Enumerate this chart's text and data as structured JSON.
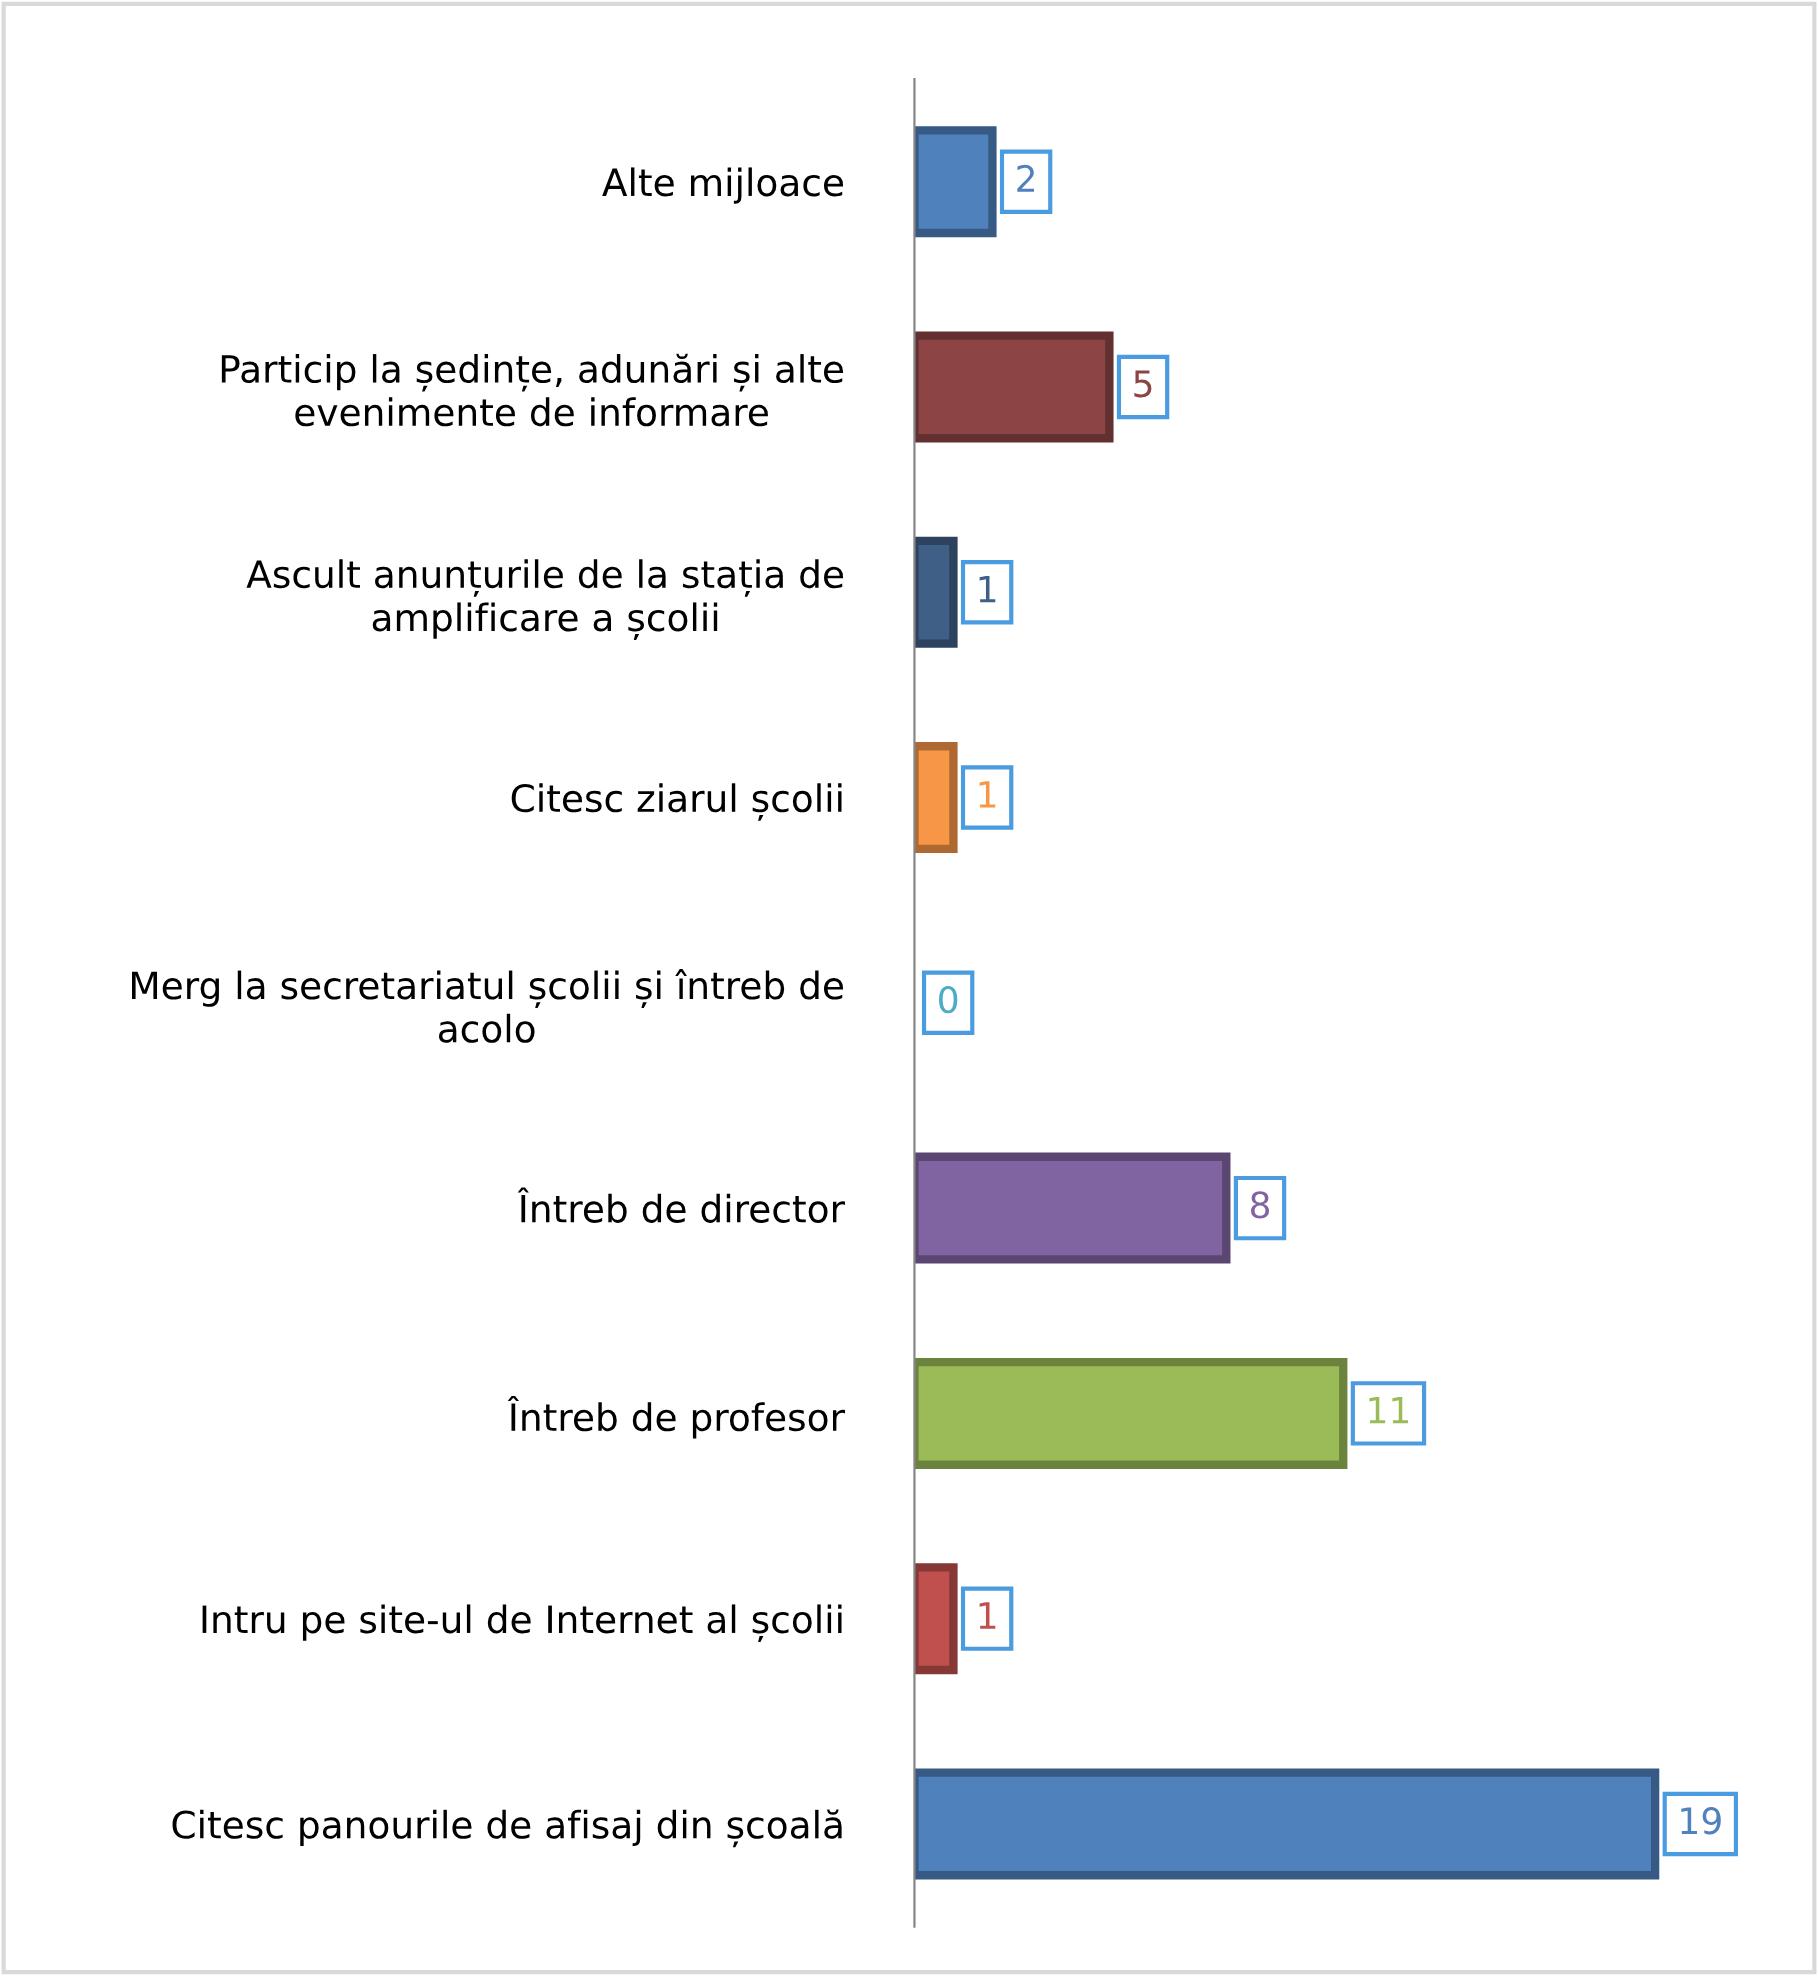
{
  "chart_data": {
    "type": "bar",
    "orientation": "horizontal",
    "categories": [
      "Alte mijloace",
      "Particip la ședințe, adunări și alte evenimente de informare",
      "Ascult anunțurile de la stația de amplificare a școlii",
      "Citesc ziarul școlii",
      "Merg la secretariatul școlii și întreb de acolo",
      "Întreb de director",
      "Întreb de profesor",
      "Intru pe site-ul de Internet al școlii",
      "Citesc panourile de afisaj din școală"
    ],
    "values": [
      2,
      5,
      1,
      1,
      0,
      8,
      11,
      1,
      19
    ],
    "colors": [
      "#4f81bd",
      "#8c4444",
      "#3f5f86",
      "#f79646",
      "#4bacc6",
      "#8064a2",
      "#9bbb59",
      "#c0504d",
      "#4f81bd"
    ],
    "data_labels": true
  }
}
